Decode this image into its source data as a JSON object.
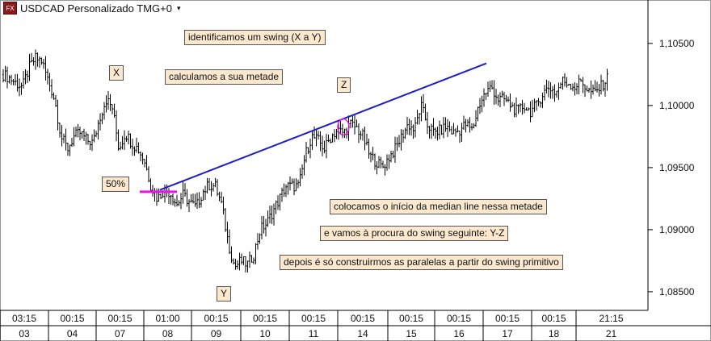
{
  "header": {
    "icon_text": "FX",
    "instrument": "USDCAD Personalizado TMG+0",
    "dropdown_glyph": "▾"
  },
  "annotations": {
    "n1": "identificamos um swing (X a Y)",
    "n2": "calculamos a sua metade",
    "n3": "colocamos o início da median line nessa metade",
    "n4": "e vamos à procura do swing seguinte: Y-Z",
    "n5": "depois é só construirmos as paralelas a partir do swing primitivo",
    "x": "X",
    "y": "Y",
    "z": "Z",
    "pct": "50%"
  },
  "colors": {
    "bars": "#000000",
    "median_line": "#1c1ccc",
    "half_marker": "#ee11ee",
    "label_bg": "#fbe8cf"
  },
  "chart_data": {
    "type": "ohlc",
    "ylim": [
      1.0835,
      1.1072
    ],
    "yticks": [
      1.085,
      1.09,
      1.095,
      1.1,
      1.105
    ],
    "ytick_labels": [
      "1,08500",
      "1,09000",
      "1,09500",
      "1,10000",
      "1,10500"
    ],
    "time_labels": [
      "03:15",
      "00:15",
      "00:15",
      "01:00",
      "00:15",
      "00:15",
      "00:15",
      "00:15",
      "00:15",
      "00:15",
      "00:15",
      "00:15",
      "21:15"
    ],
    "day_labels": [
      "03",
      "04",
      "07",
      "08",
      "09",
      "10",
      "11",
      "14",
      "15",
      "16",
      "17",
      "18",
      "21"
    ],
    "swing_points": {
      "X": 1.1043,
      "Y": 1.0858,
      "Z": 1.0986
    },
    "half_level": 1.09305,
    "median_line": {
      "start": 1.0932,
      "end": 1.1034
    },
    "close_path": [
      1.1025,
      1.1022,
      1.1018,
      1.1015,
      1.103,
      1.1038,
      1.1036,
      1.102,
      1.1005,
      1.0975,
      1.0965,
      1.0975,
      1.0978,
      1.0972,
      1.097,
      1.099,
      1.1005,
      1.0998,
      1.0965,
      1.0978,
      1.097,
      1.0965,
      1.0955,
      1.0935,
      1.0925,
      1.0932,
      1.093,
      1.092,
      1.0928,
      1.0922,
      1.0918,
      1.093,
      1.0936,
      1.0935,
      1.092,
      1.089,
      1.087,
      1.0875,
      1.0872,
      1.088,
      1.09,
      1.0905,
      1.0915,
      1.0925,
      1.0935,
      1.0935,
      1.0935,
      1.096,
      1.0975,
      1.0972,
      1.0965,
      1.0975,
      1.098,
      1.0978,
      1.0985,
      1.0982,
      1.0975,
      1.096,
      1.0955,
      1.095,
      1.0958,
      1.0965,
      1.0975,
      1.0985,
      1.098,
      1.1,
      1.0985,
      1.0978,
      1.098,
      1.0983,
      1.0978,
      1.098,
      1.0985,
      1.098,
      1.1,
      1.101,
      1.1015,
      1.1005,
      1.1005,
      1.1,
      1.0995,
      1.1,
      1.0995,
      1.1,
      1.101,
      1.1015,
      1.101,
      1.102,
      1.1018,
      1.1015,
      1.102,
      1.1012,
      1.101,
      1.1015,
      1.1022
    ]
  }
}
